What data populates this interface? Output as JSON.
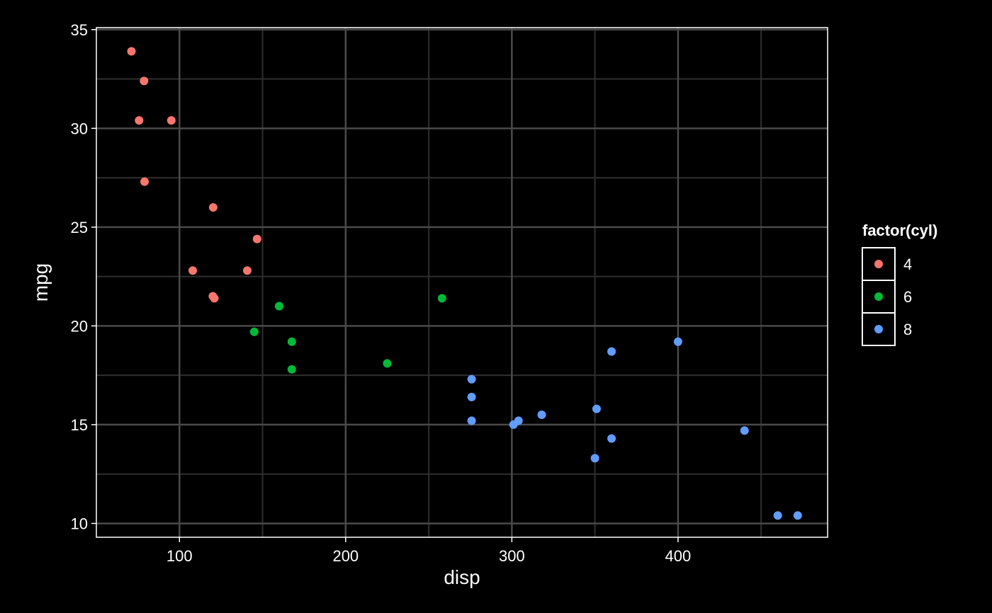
{
  "chart_data": {
    "type": "scatter",
    "xlabel": "disp",
    "ylabel": "mpg",
    "xlim": [
      50,
      490
    ],
    "ylim": [
      9.3,
      35.1
    ],
    "x_ticks": [
      100,
      200,
      300,
      400
    ],
    "x_minor_ticks": [
      150,
      250,
      350,
      450
    ],
    "y_ticks": [
      10,
      15,
      20,
      25,
      30,
      35
    ],
    "y_minor_ticks": [
      12.5,
      17.5,
      22.5,
      27.5,
      32.5
    ],
    "x_tick_labels": [
      "100",
      "200",
      "300",
      "400"
    ],
    "y_tick_labels": [
      "10",
      "15",
      "20",
      "25",
      "30",
      "35"
    ],
    "grid": true,
    "legend": {
      "title": "factor(cyl)",
      "placement": "right",
      "entries": [
        "4",
        "6",
        "8"
      ]
    },
    "background": "#000000",
    "series": [
      {
        "name": "4",
        "color": "#F8766D",
        "points": [
          [
            71.1,
            33.9
          ],
          [
            78.7,
            32.4
          ],
          [
            75.7,
            30.4
          ],
          [
            95.1,
            30.4
          ],
          [
            79.0,
            27.3
          ],
          [
            120.3,
            26.0
          ],
          [
            146.7,
            24.4
          ],
          [
            108.0,
            22.8
          ],
          [
            140.8,
            22.8
          ],
          [
            120.1,
            21.5
          ],
          [
            121.0,
            21.4
          ]
        ]
      },
      {
        "name": "6",
        "color": "#00BA38",
        "points": [
          [
            160.0,
            21.0
          ],
          [
            160.0,
            21.0
          ],
          [
            258.0,
            21.4
          ],
          [
            225.0,
            18.1
          ],
          [
            167.6,
            19.2
          ],
          [
            167.6,
            17.8
          ],
          [
            145.0,
            19.7
          ]
        ]
      },
      {
        "name": "8",
        "color": "#619CFF",
        "points": [
          [
            360.0,
            18.7
          ],
          [
            360.0,
            14.3
          ],
          [
            275.8,
            16.4
          ],
          [
            275.8,
            17.3
          ],
          [
            275.8,
            15.2
          ],
          [
            472.0,
            10.4
          ],
          [
            460.0,
            10.4
          ],
          [
            440.0,
            14.7
          ],
          [
            318.0,
            15.5
          ],
          [
            304.0,
            15.2
          ],
          [
            350.0,
            13.3
          ],
          [
            400.0,
            19.2
          ],
          [
            351.0,
            15.8
          ],
          [
            301.0,
            15.0
          ]
        ]
      }
    ]
  }
}
